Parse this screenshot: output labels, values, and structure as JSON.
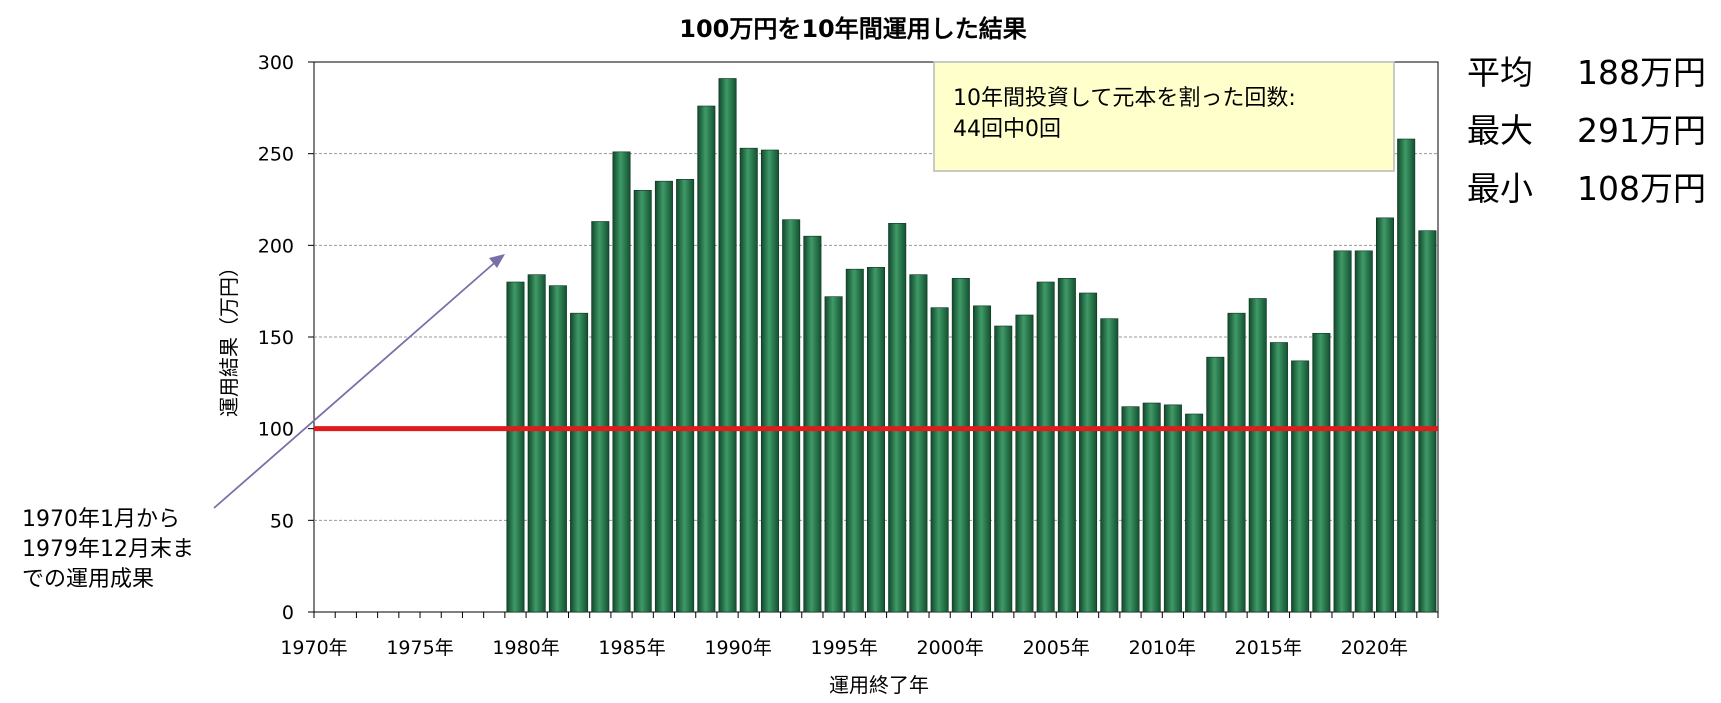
{
  "chart_data": {
    "type": "bar",
    "title": "100万円を10年間運用した結果",
    "xlabel": "運用終了年",
    "ylabel": "運用結果（万円）",
    "ylim": [
      0,
      300
    ],
    "yticks": [
      "0",
      "50",
      "100",
      "150",
      "200",
      "250",
      "300"
    ],
    "xticks": [
      "1970年",
      "1975年",
      "1980年",
      "1985年",
      "1990年",
      "1995年",
      "2000年",
      "2005年",
      "2010年",
      "2015年",
      "2020年"
    ],
    "x_range": [
      1970,
      2022
    ],
    "grid": true,
    "baseline_value": 100,
    "colors": {
      "bar": "#1f6e44",
      "bar_highlight": "#3f9a68",
      "baseline": "#e01b1b",
      "grid": "#999999",
      "note_bg": "#ffffcc",
      "arrow": "#7a6fa8"
    },
    "categories": [
      1979,
      1980,
      1981,
      1982,
      1983,
      1984,
      1985,
      1986,
      1987,
      1988,
      1989,
      1990,
      1991,
      1992,
      1993,
      1994,
      1995,
      1996,
      1997,
      1998,
      1999,
      2000,
      2001,
      2002,
      2003,
      2004,
      2005,
      2006,
      2007,
      2008,
      2009,
      2010,
      2011,
      2012,
      2013,
      2014,
      2015,
      2016,
      2017,
      2018,
      2019,
      2020,
      2021,
      2022
    ],
    "values": [
      180,
      184,
      178,
      163,
      213,
      251,
      230,
      235,
      236,
      276,
      291,
      253,
      252,
      214,
      205,
      172,
      187,
      188,
      212,
      184,
      166,
      182,
      167,
      156,
      162,
      180,
      182,
      174,
      160,
      112,
      114,
      113,
      108,
      139,
      163,
      171,
      147,
      137,
      152,
      197,
      197,
      215,
      258,
      208
    ]
  },
  "note": {
    "line1": "10年間投資して元本を割った回数:",
    "line2": "44回中0回"
  },
  "stats": [
    {
      "label": "平均",
      "value": "188万円"
    },
    {
      "label": "最大",
      "value": "291万円"
    },
    {
      "label": "最小",
      "value": "108万円"
    }
  ],
  "annotation": {
    "lines": [
      "1970年1月から",
      "1979年12月末ま",
      "での運用成果"
    ]
  }
}
